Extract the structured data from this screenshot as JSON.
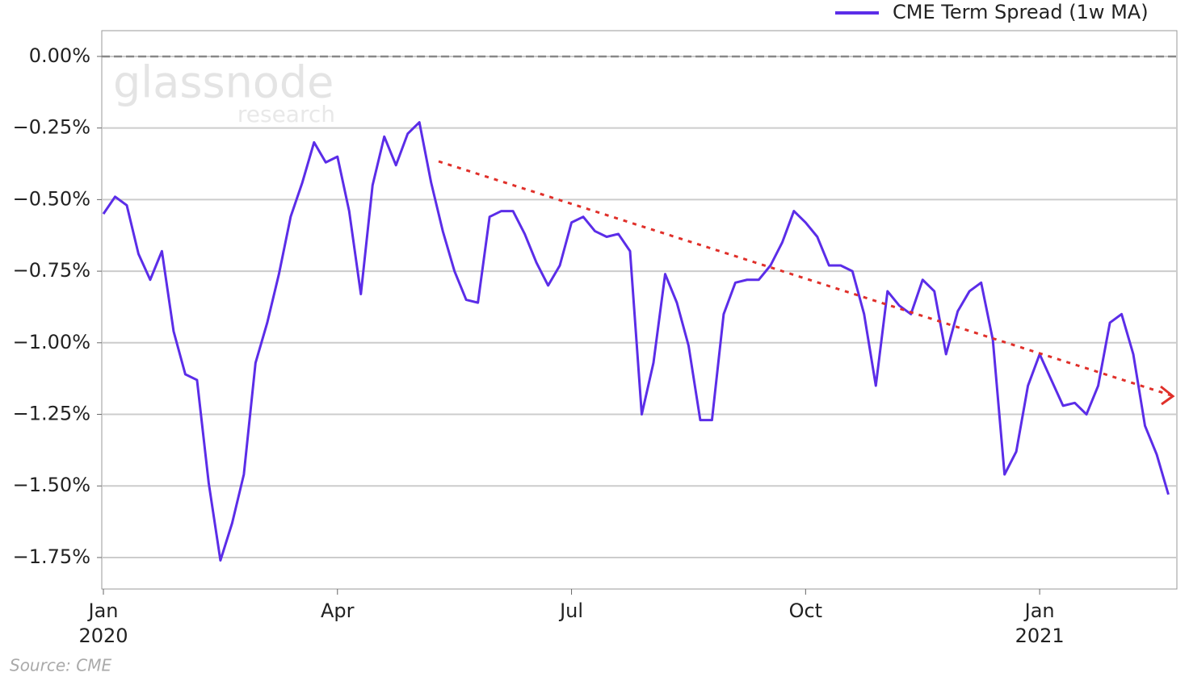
{
  "chart_data": {
    "type": "line",
    "legend_label": "CME Term Spread (1w MA)",
    "source": "Source: CME",
    "watermark": [
      "glassnode",
      "research"
    ],
    "categories": [
      "Jan\n2020",
      null,
      null,
      null,
      null,
      null,
      null,
      null,
      null,
      null,
      null,
      null,
      null,
      null,
      null,
      null,
      null,
      null,
      null,
      null,
      "Apr",
      null,
      null,
      null,
      null,
      null,
      null,
      null,
      null,
      null,
      null,
      null,
      null,
      null,
      null,
      null,
      null,
      null,
      null,
      null,
      "Jul",
      null,
      null,
      null,
      null,
      null,
      null,
      null,
      null,
      null,
      null,
      null,
      null,
      null,
      null,
      null,
      null,
      null,
      null,
      null,
      "Oct",
      null,
      null,
      null,
      null,
      null,
      null,
      null,
      null,
      null,
      null,
      null,
      null,
      null,
      null,
      null,
      null,
      null,
      null,
      null,
      "Jan\n2021",
      null,
      null,
      null,
      null,
      null,
      null,
      null,
      null,
      null,
      null,
      null
    ],
    "series": [
      {
        "name": "CME Term Spread (1w MA)",
        "color": "#5b2de8",
        "values": [
          -0.55,
          -0.49,
          -0.52,
          -0.69,
          -0.78,
          -0.68,
          -0.96,
          -1.11,
          -1.13,
          -1.49,
          -1.76,
          -1.63,
          -1.46,
          -1.07,
          -0.93,
          -0.76,
          -0.56,
          -0.44,
          -0.3,
          -0.37,
          -0.35,
          -0.54,
          -0.83,
          -0.45,
          -0.28,
          -0.38,
          -0.27,
          -0.23,
          -0.44,
          -0.61,
          -0.75,
          -0.85,
          -0.86,
          -0.56,
          -0.54,
          -0.54,
          -0.62,
          -0.72,
          -0.8,
          -0.73,
          -0.58,
          -0.56,
          -0.61,
          -0.63,
          -0.62,
          -0.68,
          -1.25,
          -1.07,
          -0.76,
          -0.86,
          -1.01,
          -1.27,
          -1.27,
          -0.9,
          -0.79,
          -0.78,
          -0.78,
          -0.73,
          -0.65,
          -0.54,
          -0.58,
          -0.63,
          -0.73,
          -0.73,
          -0.75,
          -0.9,
          -1.15,
          -0.82,
          -0.87,
          -0.9,
          -0.78,
          -0.82,
          -1.04,
          -0.89,
          -0.82,
          -0.79,
          -0.99,
          -1.46,
          -1.38,
          -1.15,
          -1.04,
          -1.13,
          -1.22,
          -1.21,
          -1.25,
          -1.15,
          -0.93,
          -0.9,
          -1.04,
          -1.29,
          -1.39,
          -1.53
        ]
      }
    ],
    "ylim": [
      -1.86,
      0.09
    ],
    "yticks": [
      {
        "value": 0,
        "label": "0.00%"
      },
      {
        "value": -0.25,
        "label": "−0.25%"
      },
      {
        "value": -0.5,
        "label": "−0.50%"
      },
      {
        "value": -0.75,
        "label": "−0.75%"
      },
      {
        "value": -1,
        "label": "−1.00%"
      },
      {
        "value": -1.25,
        "label": "−1.25%"
      },
      {
        "value": -1.5,
        "label": "−1.50%"
      },
      {
        "value": -1.75,
        "label": "−1.75%"
      }
    ],
    "reference_line": 0,
    "grid": true
  }
}
